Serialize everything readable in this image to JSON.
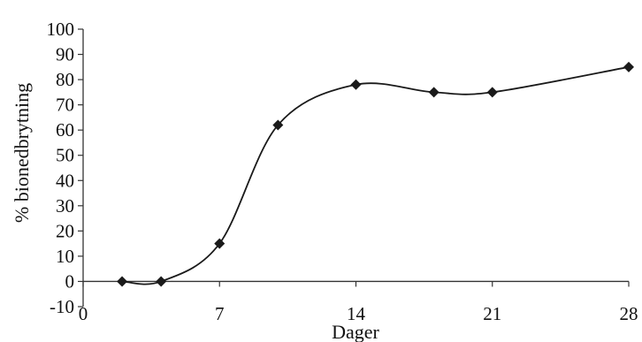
{
  "chart_data": {
    "type": "line",
    "title": "",
    "xlabel": "Dager",
    "ylabel": "% bionedbrytning",
    "xlim": [
      0,
      28
    ],
    "ylim": [
      -10,
      100
    ],
    "x_ticks": [
      0,
      7,
      14,
      21,
      28
    ],
    "y_ticks": [
      -10,
      0,
      10,
      20,
      30,
      40,
      50,
      60,
      70,
      80,
      90,
      100
    ],
    "grid": false,
    "legend": "none",
    "series": [
      {
        "x": [
          2,
          4,
          7,
          10,
          14,
          18,
          21,
          28
        ],
        "y": [
          0,
          0,
          15,
          62,
          78,
          75,
          75,
          85
        ],
        "color": "#1a1a1a",
        "marker": "diamond"
      }
    ]
  }
}
